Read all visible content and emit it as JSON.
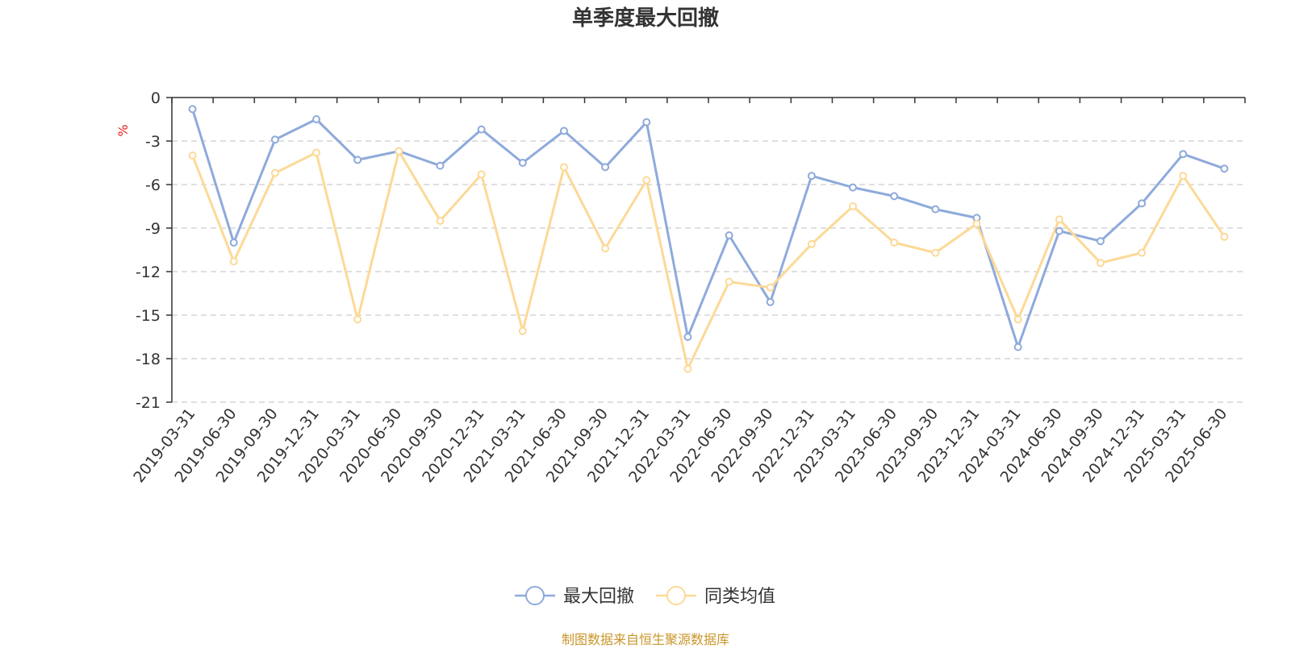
{
  "chart_data": {
    "type": "line",
    "title": "单季度最大回撤",
    "ylabel": "%",
    "xlabel": "",
    "ylim": [
      -21,
      0
    ],
    "yticks": [
      0,
      -3,
      -6,
      -9,
      -12,
      -15,
      -18,
      -21
    ],
    "grid": true,
    "legend_position": "bottom-center",
    "categories": [
      "2019-03-31",
      "2019-06-30",
      "2019-09-30",
      "2019-12-31",
      "2020-03-31",
      "2020-06-30",
      "2020-09-30",
      "2020-12-31",
      "2021-03-31",
      "2021-06-30",
      "2021-09-30",
      "2021-12-31",
      "2022-03-31",
      "2022-06-30",
      "2022-09-30",
      "2022-12-31",
      "2023-03-31",
      "2023-06-30",
      "2023-09-30",
      "2023-12-31",
      "2024-03-31",
      "2024-06-30",
      "2024-09-30",
      "2024-12-31",
      "2025-03-31",
      "2025-06-30"
    ],
    "series": [
      {
        "name": "最大回撤",
        "color": "#8eaadb",
        "values": [
          -0.8,
          -10.0,
          -2.9,
          -1.5,
          -4.3,
          -3.7,
          -4.7,
          -2.2,
          -4.5,
          -2.3,
          -4.8,
          -1.7,
          -16.5,
          -9.5,
          -14.1,
          -5.4,
          -6.2,
          -6.8,
          -7.7,
          -8.3,
          -17.2,
          -9.2,
          -9.9,
          -7.3,
          -3.9,
          -4.9
        ]
      },
      {
        "name": "同类均值",
        "color": "#fcd997",
        "values": [
          -4.0,
          -11.3,
          -5.2,
          -3.8,
          -15.3,
          -3.7,
          -8.5,
          -5.3,
          -16.1,
          -4.8,
          -10.4,
          -5.7,
          -18.7,
          -12.7,
          -13.1,
          -10.1,
          -7.5,
          -10.0,
          -10.7,
          -8.7,
          -15.3,
          -8.4,
          -11.4,
          -10.7,
          -5.4,
          -9.6
        ]
      }
    ]
  },
  "source": "制图数据来自恒生聚源数据库"
}
